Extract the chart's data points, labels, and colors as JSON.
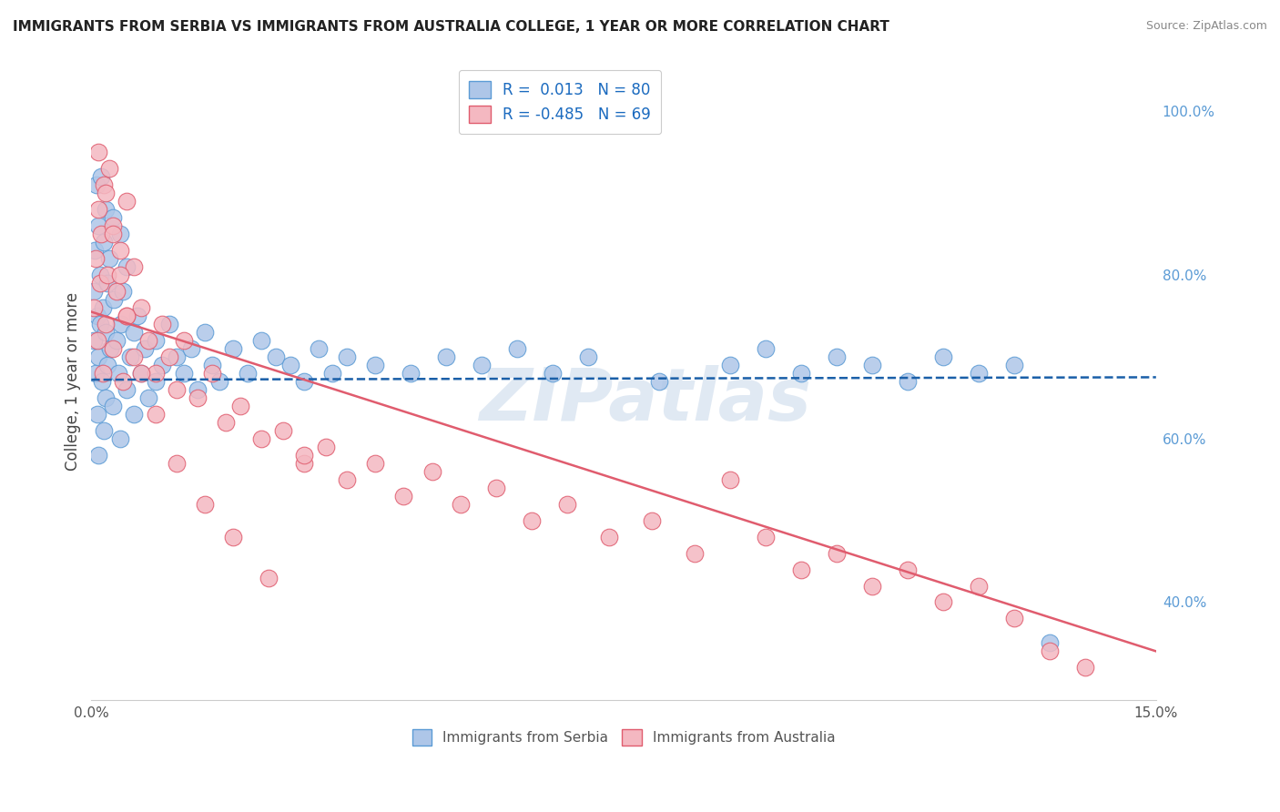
{
  "title": "IMMIGRANTS FROM SERBIA VS IMMIGRANTS FROM AUSTRALIA COLLEGE, 1 YEAR OR MORE CORRELATION CHART",
  "source": "Source: ZipAtlas.com",
  "ylabel": "College, 1 year or more",
  "xlim": [
    0.0,
    0.15
  ],
  "ylim": [
    0.28,
    1.06
  ],
  "x_ticks": [
    0.0,
    0.15
  ],
  "x_tick_labels": [
    "0.0%",
    "15.0%"
  ],
  "y_ticks": [
    0.4,
    0.6,
    0.8,
    1.0
  ],
  "y_tick_labels": [
    "40.0%",
    "60.0%",
    "80.0%",
    "100.0%"
  ],
  "grid_color": "#cccccc",
  "background_color": "#ffffff",
  "series1_color": "#aec6e8",
  "series1_edge_color": "#5b9bd5",
  "series2_color": "#f4b8c1",
  "series2_edge_color": "#e05c6e",
  "legend_R1": "0.013",
  "legend_N1": "80",
  "legend_R2": "-0.485",
  "legend_N2": "69",
  "trend1_color": "#1a5fa8",
  "trend2_color": "#e05c6e",
  "watermark": "ZIPatlas",
  "serbia_x": [
    0.0003,
    0.0004,
    0.0005,
    0.0006,
    0.0007,
    0.0008,
    0.0009,
    0.001,
    0.001,
    0.001,
    0.0012,
    0.0013,
    0.0014,
    0.0015,
    0.0016,
    0.0017,
    0.0018,
    0.002,
    0.002,
    0.002,
    0.0022,
    0.0023,
    0.0025,
    0.0027,
    0.003,
    0.003,
    0.0032,
    0.0035,
    0.0038,
    0.004,
    0.004,
    0.0042,
    0.0045,
    0.005,
    0.005,
    0.0055,
    0.006,
    0.006,
    0.0065,
    0.007,
    0.0075,
    0.008,
    0.009,
    0.009,
    0.01,
    0.011,
    0.012,
    0.013,
    0.014,
    0.015,
    0.016,
    0.017,
    0.018,
    0.02,
    0.022,
    0.024,
    0.026,
    0.028,
    0.03,
    0.032,
    0.034,
    0.036,
    0.04,
    0.045,
    0.05,
    0.055,
    0.06,
    0.065,
    0.07,
    0.08,
    0.09,
    0.095,
    0.1,
    0.105,
    0.11,
    0.115,
    0.12,
    0.125,
    0.13,
    0.135
  ],
  "serbia_y": [
    0.72,
    0.78,
    0.83,
    0.68,
    0.91,
    0.75,
    0.63,
    0.86,
    0.7,
    0.58,
    0.8,
    0.74,
    0.92,
    0.67,
    0.76,
    0.84,
    0.61,
    0.88,
    0.73,
    0.65,
    0.79,
    0.69,
    0.82,
    0.71,
    0.87,
    0.64,
    0.77,
    0.72,
    0.68,
    0.85,
    0.6,
    0.74,
    0.78,
    0.66,
    0.81,
    0.7,
    0.73,
    0.63,
    0.75,
    0.68,
    0.71,
    0.65,
    0.72,
    0.67,
    0.69,
    0.74,
    0.7,
    0.68,
    0.71,
    0.66,
    0.73,
    0.69,
    0.67,
    0.71,
    0.68,
    0.72,
    0.7,
    0.69,
    0.67,
    0.71,
    0.68,
    0.7,
    0.69,
    0.68,
    0.7,
    0.69,
    0.71,
    0.68,
    0.7,
    0.67,
    0.69,
    0.71,
    0.68,
    0.7,
    0.69,
    0.67,
    0.7,
    0.68,
    0.69,
    0.35
  ],
  "australia_x": [
    0.0004,
    0.0006,
    0.0008,
    0.001,
    0.0012,
    0.0014,
    0.0016,
    0.0018,
    0.002,
    0.0022,
    0.0025,
    0.003,
    0.003,
    0.0035,
    0.004,
    0.0045,
    0.005,
    0.005,
    0.006,
    0.006,
    0.007,
    0.008,
    0.009,
    0.01,
    0.011,
    0.012,
    0.013,
    0.015,
    0.017,
    0.019,
    0.021,
    0.024,
    0.027,
    0.03,
    0.033,
    0.036,
    0.04,
    0.044,
    0.048,
    0.052,
    0.057,
    0.062,
    0.067,
    0.073,
    0.079,
    0.085,
    0.09,
    0.095,
    0.1,
    0.105,
    0.11,
    0.115,
    0.12,
    0.125,
    0.13,
    0.135,
    0.14,
    0.001,
    0.002,
    0.003,
    0.004,
    0.005,
    0.007,
    0.009,
    0.012,
    0.016,
    0.02,
    0.025,
    0.03
  ],
  "australia_y": [
    0.76,
    0.82,
    0.72,
    0.88,
    0.79,
    0.85,
    0.68,
    0.91,
    0.74,
    0.8,
    0.93,
    0.86,
    0.71,
    0.78,
    0.83,
    0.67,
    0.89,
    0.75,
    0.81,
    0.7,
    0.76,
    0.72,
    0.68,
    0.74,
    0.7,
    0.66,
    0.72,
    0.65,
    0.68,
    0.62,
    0.64,
    0.6,
    0.61,
    0.57,
    0.59,
    0.55,
    0.57,
    0.53,
    0.56,
    0.52,
    0.54,
    0.5,
    0.52,
    0.48,
    0.5,
    0.46,
    0.55,
    0.48,
    0.44,
    0.46,
    0.42,
    0.44,
    0.4,
    0.42,
    0.38,
    0.34,
    0.32,
    0.95,
    0.9,
    0.85,
    0.8,
    0.75,
    0.68,
    0.63,
    0.57,
    0.52,
    0.48,
    0.43,
    0.58
  ]
}
